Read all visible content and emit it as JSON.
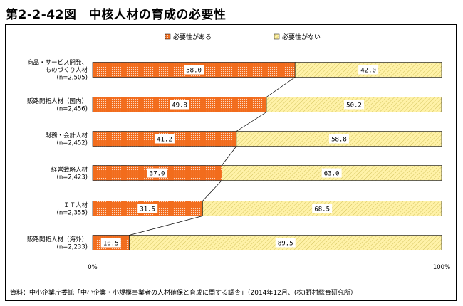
{
  "title": "第2-2-42図　中核人材の育成の必要性",
  "source": "資料：中小企業庁委託「中小企業・小規模事業者の人材確保と育成に関する調査」（2014年12月、(株)野村総合研究所）",
  "colors": {
    "need": "#f26c1c",
    "noneed": "#fff2a8"
  },
  "chart_data": {
    "type": "bar",
    "orientation": "horizontal",
    "stacked": true,
    "percent": true,
    "categories": [
      {
        "lines": [
          "商品・サービス開発、",
          "ものづくり人材",
          "(n=2,505)"
        ]
      },
      {
        "lines": [
          "販路開拓人材（国内）",
          "(n=2,456)"
        ]
      },
      {
        "lines": [
          "財務・会計人材",
          "(n=2,452)"
        ]
      },
      {
        "lines": [
          "経営戦略人材",
          "(n=2,423)"
        ]
      },
      {
        "lines": [
          "ＩＴ人材",
          "(n=2,355)"
        ]
      },
      {
        "lines": [
          "販路開拓人材（海外）",
          "(n=2,233)"
        ]
      }
    ],
    "series": [
      {
        "name": "必要性がある",
        "values": [
          58.0,
          49.8,
          41.2,
          37.0,
          31.5,
          10.5
        ]
      },
      {
        "name": "必要性がない",
        "values": [
          42.0,
          50.2,
          58.8,
          63.0,
          68.5,
          89.5
        ]
      }
    ],
    "xlim": [
      0,
      100
    ],
    "xticks": [
      "0%",
      "100%"
    ],
    "legend": "top-center",
    "connector_lines": true
  }
}
